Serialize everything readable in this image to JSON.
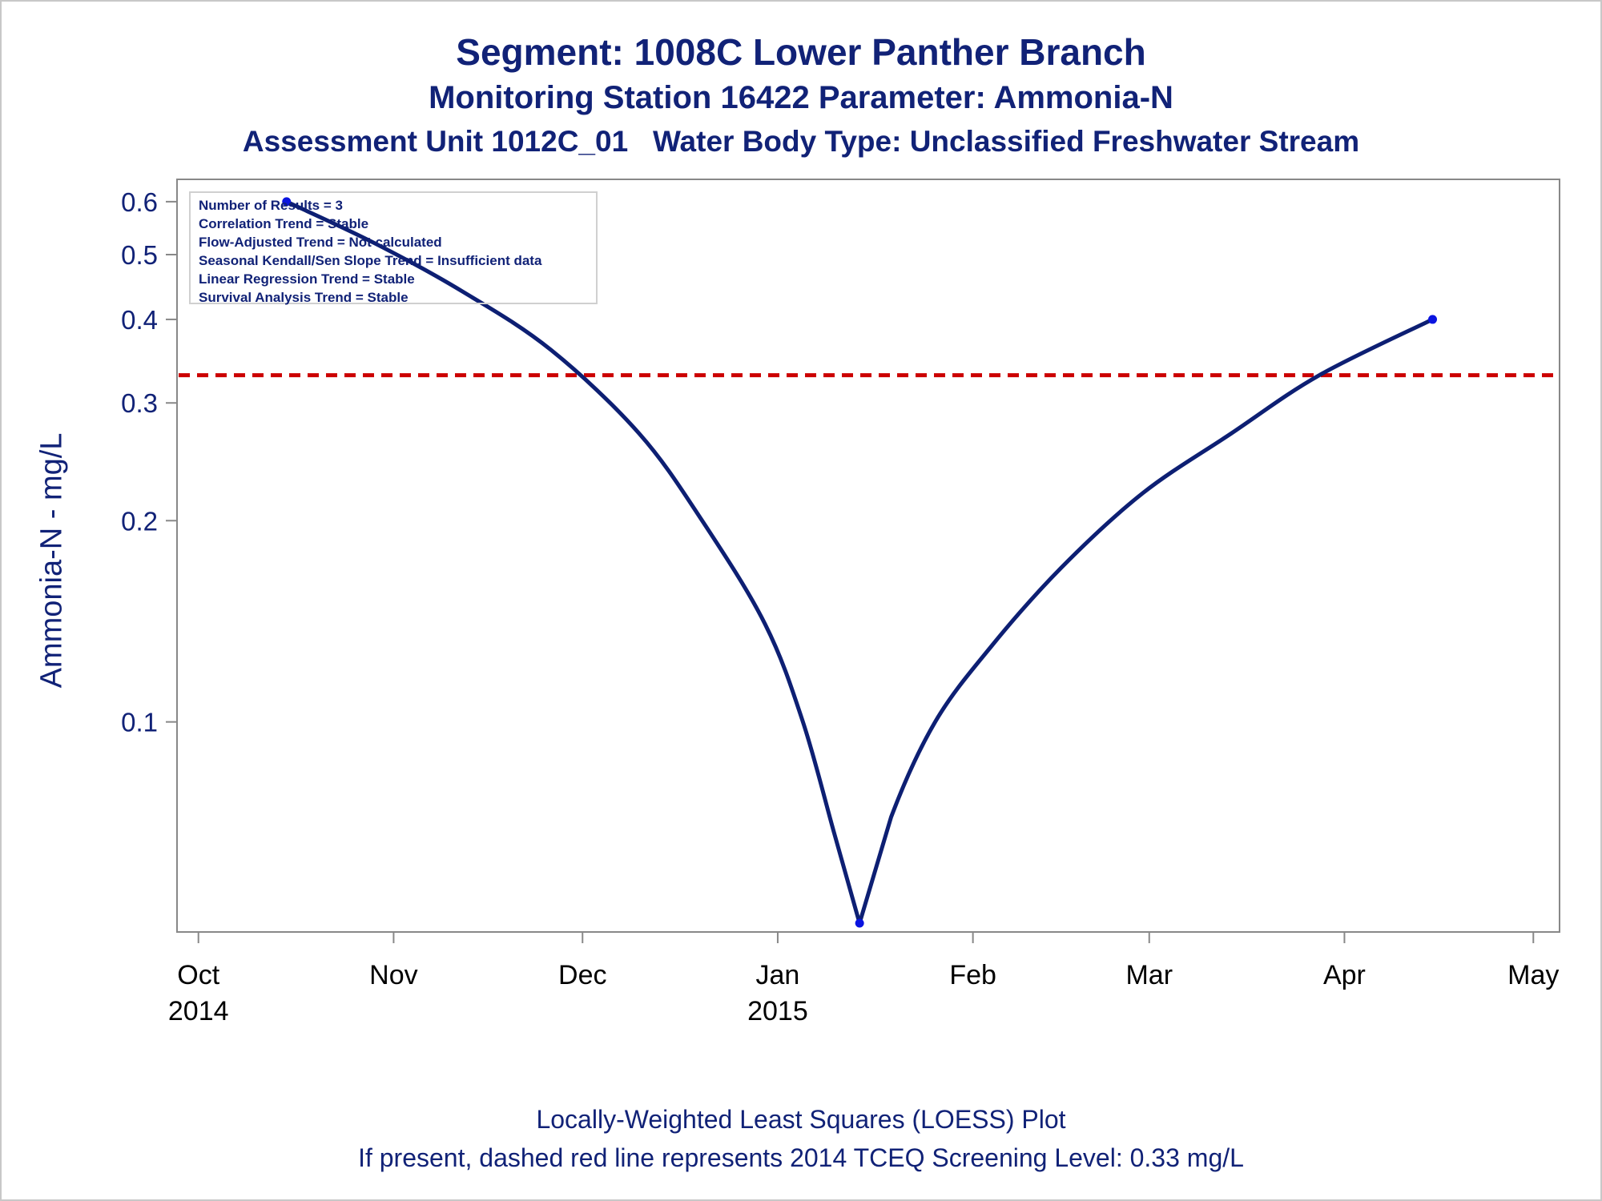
{
  "titles": {
    "line1": "Segment: 1008C  Lower Panther Branch",
    "line2": "Monitoring Station 16422 Parameter: Ammonia-N",
    "line3": "Assessment Unit 1012C_01   Water Body Type: Unclassified Freshwater Stream"
  },
  "stats": [
    "Number of Results = 3",
    "Correlation Trend = Stable",
    "Flow-Adjusted Trend = Not calculated",
    "Seasonal Kendall/Sen Slope Trend = Insufficient data",
    "Linear Regression Trend = Stable",
    "Survival Analysis Trend = Stable"
  ],
  "footnotes": {
    "line1": "Locally-Weighted Least Squares (LOESS) Plot",
    "line2": "If present, dashed red line represents 2014 TCEQ Screening Level: 0.33 mg/L"
  },
  "chart_data": {
    "type": "line",
    "ylabel": "Ammonia-N - mg/L",
    "xlabel": "",
    "y_scale": "log",
    "ylim": [
      0.05,
      0.62
    ],
    "y_ticks": [
      0.1,
      0.2,
      0.3,
      0.4,
      0.5,
      0.6
    ],
    "y_tick_labels": [
      "0.1",
      "0.2",
      "0.3",
      "0.4",
      "0.5",
      "0.6"
    ],
    "xlim": [
      "2014-09-29",
      "2015-05-03"
    ],
    "x_ticks": [
      {
        "date": "2014-10-01",
        "label": "Oct",
        "sub": "2014"
      },
      {
        "date": "2014-11-01",
        "label": "Nov",
        "sub": ""
      },
      {
        "date": "2014-12-01",
        "label": "Dec",
        "sub": ""
      },
      {
        "date": "2015-01-01",
        "label": "Jan",
        "sub": "2015"
      },
      {
        "date": "2015-02-01",
        "label": "Feb",
        "sub": ""
      },
      {
        "date": "2015-03-01",
        "label": "Mar",
        "sub": ""
      },
      {
        "date": "2015-04-01",
        "label": "Apr",
        "sub": ""
      },
      {
        "date": "2015-05-01",
        "label": "May",
        "sub": ""
      }
    ],
    "points": [
      {
        "date": "2014-10-15",
        "value": 0.6
      },
      {
        "date": "2015-01-14",
        "value": 0.05
      },
      {
        "date": "2015-04-15",
        "value": 0.4
      }
    ],
    "loess_curve": [
      {
        "date": "2014-10-15",
        "value": 0.6
      },
      {
        "date": "2014-10-29",
        "value": 0.52
      },
      {
        "date": "2014-11-12",
        "value": 0.44
      },
      {
        "date": "2014-11-26",
        "value": 0.36
      },
      {
        "date": "2014-12-10",
        "value": 0.27
      },
      {
        "date": "2014-12-20",
        "value": 0.2
      },
      {
        "date": "2014-12-30",
        "value": 0.14
      },
      {
        "date": "2015-01-05",
        "value": 0.1
      },
      {
        "date": "2015-01-10",
        "value": 0.068
      },
      {
        "date": "2015-01-14",
        "value": 0.05
      },
      {
        "date": "2015-01-19",
        "value": 0.072
      },
      {
        "date": "2015-01-26",
        "value": 0.1
      },
      {
        "date": "2015-02-04",
        "value": 0.13
      },
      {
        "date": "2015-02-15",
        "value": 0.17
      },
      {
        "date": "2015-02-28",
        "value": 0.22
      },
      {
        "date": "2015-03-14",
        "value": 0.27
      },
      {
        "date": "2015-03-28",
        "value": 0.33
      },
      {
        "date": "2015-04-15",
        "value": 0.4
      }
    ],
    "reference_line": {
      "value": 0.33,
      "style": "dashed",
      "color": "#cc0000"
    },
    "colors": {
      "line": "#0d1f73",
      "points": "#0a14e0",
      "axis": "#888888",
      "text": "#112277"
    },
    "grid": false
  }
}
